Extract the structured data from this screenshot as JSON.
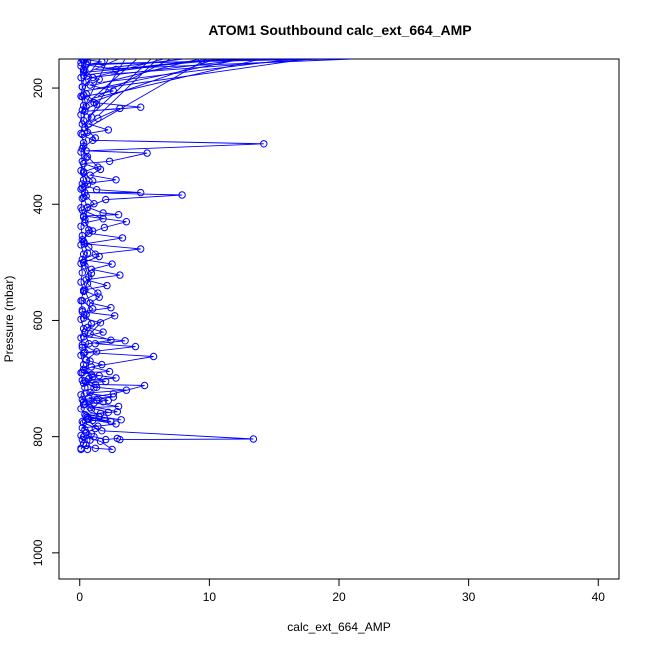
{
  "chart_data": {
    "type": "line",
    "title": "ATOM1 Southbound calc_ext_664_AMP",
    "xlabel": "calc_ext_664_AMP",
    "ylabel": "Pressure (mbar)",
    "xlim": [
      -1.6,
      41.6
    ],
    "ylim": [
      1045,
      150
    ],
    "y_reversed": true,
    "x_ticks": [
      0,
      10,
      20,
      30,
      40
    ],
    "y_ticks": [
      200,
      400,
      600,
      800,
      1000
    ],
    "x_tick_labels": [
      "0",
      "10",
      "20",
      "30",
      "40"
    ],
    "y_tick_labels": [
      "200",
      "400",
      "600",
      "800",
      "1000"
    ],
    "grid": false,
    "series_color": "#0000ff",
    "marker": "open-circle",
    "series": [
      {
        "points": [
          [
            0.1,
            820
          ],
          [
            0.5,
            815
          ],
          [
            1.2,
            820
          ],
          [
            2.5,
            822
          ],
          [
            1.6,
            808
          ],
          [
            0.3,
            800
          ],
          [
            0.9,
            795
          ],
          [
            0.2,
            785
          ],
          [
            1.4,
            782
          ],
          [
            2.8,
            778
          ],
          [
            0.6,
            770
          ],
          [
            1.9,
            768
          ],
          [
            3.2,
            771
          ],
          [
            0.4,
            762
          ],
          [
            2.2,
            758
          ],
          [
            0.8,
            750
          ],
          [
            3.0,
            748
          ],
          [
            1.1,
            742
          ],
          [
            0.2,
            736
          ],
          [
            2.6,
            732
          ],
          [
            0.5,
            725
          ],
          [
            3.6,
            720
          ],
          [
            1.3,
            715
          ],
          [
            0.3,
            708
          ],
          [
            2.0,
            705
          ],
          [
            0.7,
            700
          ],
          [
            1.5,
            695
          ],
          [
            0.2,
            690
          ],
          [
            2.3,
            688
          ],
          [
            0.9,
            680
          ],
          [
            5.7,
            662
          ],
          [
            0.4,
            655
          ],
          [
            4.3,
            645
          ],
          [
            1.2,
            640
          ],
          [
            3.5,
            635
          ],
          [
            0.3,
            628
          ],
          [
            1.8,
            620
          ],
          [
            0.6,
            612
          ],
          [
            2.7,
            592
          ],
          [
            0.2,
            585
          ],
          [
            2.4,
            578
          ],
          [
            0.8,
            570
          ],
          [
            1.5,
            560
          ],
          [
            0.3,
            548
          ],
          [
            2.1,
            540
          ],
          [
            0.5,
            530
          ],
          [
            3.1,
            522
          ],
          [
            0.9,
            512
          ],
          [
            2.5,
            503
          ],
          [
            0.2,
            495
          ],
          [
            1.2,
            486
          ],
          [
            4.7,
            477
          ],
          [
            0.4,
            468
          ],
          [
            3.3,
            458
          ],
          [
            0.7,
            450
          ],
          [
            1.9,
            440
          ],
          [
            3.6,
            430
          ],
          [
            0.3,
            420
          ],
          [
            3.0,
            418
          ],
          [
            1.8,
            415
          ],
          [
            0.6,
            405
          ],
          [
            2.0,
            392
          ],
          [
            7.9,
            384
          ],
          [
            0.4,
            380
          ],
          [
            4.7,
            380
          ],
          [
            1.3,
            375
          ],
          [
            0.2,
            365
          ],
          [
            2.8,
            358
          ],
          [
            0.8,
            350
          ],
          [
            1.6,
            340
          ],
          [
            0.3,
            330
          ],
          [
            2.3,
            326
          ],
          [
            5.2,
            312
          ],
          [
            0.5,
            308
          ],
          [
            14.2,
            296
          ],
          [
            1.0,
            290
          ],
          [
            0.2,
            280
          ],
          [
            2.2,
            272
          ],
          [
            0.7,
            262
          ],
          [
            1.4,
            252
          ],
          [
            3.1,
            235
          ],
          [
            0.4,
            240
          ],
          [
            4.7,
            233
          ],
          [
            1.1,
            225
          ],
          [
            0.2,
            215
          ],
          [
            2.6,
            205
          ],
          [
            0.8,
            195
          ],
          [
            1.5,
            185
          ],
          [
            0.3,
            178
          ],
          [
            9.4,
            152
          ],
          [
            2.8,
            168
          ],
          [
            0.5,
            160
          ],
          [
            1.7,
            155
          ],
          [
            0.2,
            150
          ]
        ]
      },
      {
        "points": [
          [
            0.2,
            805
          ],
          [
            1.1,
            800
          ],
          [
            2.0,
            805
          ],
          [
            2.9,
            803
          ],
          [
            3.1,
            805
          ],
          [
            13.4,
            804
          ],
          [
            1.7,
            790
          ],
          [
            0.3,
            776
          ],
          [
            1.0,
            772
          ],
          [
            2.4,
            774
          ],
          [
            0.6,
            766
          ],
          [
            1.6,
            760
          ],
          [
            2.9,
            757
          ],
          [
            0.3,
            745
          ],
          [
            1.8,
            740
          ],
          [
            0.7,
            733
          ],
          [
            2.6,
            726
          ],
          [
            5.0,
            712
          ],
          [
            1.2,
            710
          ],
          [
            0.4,
            704
          ],
          [
            2.8,
            699
          ],
          [
            0.9,
            693
          ],
          [
            0.3,
            684
          ],
          [
            1.7,
            676
          ],
          [
            0.5,
            668
          ],
          [
            1.3,
            654
          ],
          [
            0.2,
            642
          ],
          [
            2.4,
            634
          ],
          [
            0.8,
            623
          ],
          [
            1.6,
            604
          ],
          [
            0.3,
            596
          ],
          [
            1.0,
            580
          ],
          [
            0.2,
            566
          ],
          [
            1.4,
            553
          ],
          [
            0.6,
            537
          ],
          [
            0.9,
            519
          ],
          [
            0.3,
            500
          ],
          [
            1.5,
            490
          ],
          [
            0.7,
            474
          ],
          [
            0.2,
            461
          ],
          [
            1.0,
            446
          ],
          [
            0.4,
            432
          ],
          [
            1.8,
            425
          ],
          [
            0.2,
            410
          ],
          [
            1.1,
            399
          ],
          [
            0.5,
            386
          ],
          [
            0.2,
            372
          ],
          [
            1.0,
            360
          ],
          [
            0.3,
            344
          ],
          [
            1.4,
            336
          ],
          [
            0.6,
            318
          ],
          [
            0.2,
            304
          ],
          [
            1.2,
            286
          ],
          [
            0.4,
            268
          ],
          [
            0.9,
            250
          ],
          [
            0.2,
            238
          ],
          [
            1.3,
            228
          ],
          [
            0.5,
            210
          ],
          [
            0.2,
            198
          ],
          [
            1.0,
            182
          ],
          [
            0.4,
            170
          ],
          [
            0.1,
            162
          ],
          [
            0.6,
            155
          ],
          [
            0.2,
            150
          ]
        ]
      },
      {
        "points": [
          [
            0.1,
            822
          ],
          [
            0.3,
            812
          ],
          [
            0.1,
            798
          ],
          [
            0.4,
            788
          ],
          [
            0.2,
            774
          ],
          [
            0.5,
            764
          ],
          [
            0.1,
            752
          ],
          [
            0.3,
            740
          ],
          [
            0.1,
            728
          ],
          [
            0.4,
            716
          ],
          [
            0.2,
            703
          ],
          [
            0.1,
            690
          ],
          [
            0.3,
            676
          ],
          [
            0.1,
            660
          ],
          [
            0.2,
            646
          ],
          [
            0.1,
            630
          ],
          [
            0.3,
            614
          ],
          [
            0.1,
            598
          ],
          [
            0.2,
            582
          ],
          [
            0.1,
            566
          ],
          [
            0.3,
            550
          ],
          [
            0.1,
            534
          ],
          [
            0.2,
            518
          ],
          [
            0.1,
            502
          ],
          [
            0.3,
            486
          ],
          [
            0.1,
            470
          ],
          [
            0.2,
            454
          ],
          [
            0.1,
            438
          ],
          [
            0.3,
            422
          ],
          [
            0.1,
            406
          ],
          [
            0.2,
            390
          ],
          [
            0.1,
            374
          ],
          [
            0.3,
            358
          ],
          [
            0.1,
            342
          ],
          [
            0.2,
            326
          ],
          [
            0.1,
            310
          ],
          [
            0.3,
            294
          ],
          [
            0.1,
            278
          ],
          [
            0.2,
            262
          ],
          [
            0.1,
            246
          ],
          [
            0.3,
            230
          ],
          [
            0.1,
            214
          ],
          [
            0.2,
            198
          ],
          [
            0.1,
            182
          ],
          [
            0.3,
            168
          ],
          [
            0.1,
            156
          ],
          [
            0.2,
            150
          ]
        ]
      },
      {
        "points": [
          [
            0.6,
            822
          ],
          [
            0.8,
            806
          ],
          [
            0.5,
            793
          ],
          [
            1.2,
            786
          ],
          [
            0.7,
            770
          ],
          [
            1.5,
            766
          ],
          [
            0.9,
            753
          ],
          [
            0.4,
            744
          ],
          [
            1.3,
            737
          ],
          [
            2.2,
            738
          ],
          [
            0.8,
            724
          ],
          [
            1.1,
            716
          ],
          [
            0.5,
            706
          ],
          [
            1.0,
            697
          ],
          [
            0.4,
            686
          ],
          [
            0.8,
            670
          ],
          [
            0.3,
            656
          ],
          [
            0.7,
            640
          ],
          [
            0.4,
            620
          ],
          [
            0.9,
            606
          ],
          [
            0.5,
            590
          ],
          [
            0.8,
            570
          ],
          [
            0.4,
            548
          ],
          [
            0.7,
            525
          ],
          [
            0.4,
            506
          ],
          [
            0.6,
            484
          ],
          [
            0.3,
            464
          ],
          [
            0.7,
            444
          ],
          [
            0.4,
            426
          ],
          [
            0.6,
            406
          ],
          [
            0.3,
            388
          ],
          [
            0.6,
            366
          ],
          [
            0.3,
            346
          ],
          [
            0.5,
            320
          ],
          [
            0.3,
            300
          ],
          [
            0.6,
            276
          ],
          [
            0.3,
            256
          ],
          [
            0.5,
            232
          ],
          [
            0.3,
            212
          ],
          [
            0.5,
            190
          ],
          [
            0.3,
            172
          ],
          [
            0.5,
            158
          ],
          [
            0.3,
            150
          ]
        ]
      }
    ],
    "leaving_lines": [
      [
        0.4,
        230,
        4.4,
        150
      ],
      [
        0.9,
        196,
        9.2,
        150
      ],
      [
        1.6,
        180,
        13.0,
        150
      ],
      [
        0.3,
        205,
        17.5,
        150
      ],
      [
        1.2,
        168,
        21.0,
        150
      ],
      [
        0.6,
        184,
        6.5,
        150
      ],
      [
        0.8,
        172,
        11.5,
        150
      ],
      [
        2.0,
        166,
        8.0,
        150
      ],
      [
        0.5,
        160,
        15.0,
        150
      ],
      [
        1.0,
        158,
        19.0,
        150
      ],
      [
        0.3,
        176,
        3.0,
        150
      ],
      [
        1.4,
        214,
        7.0,
        150
      ],
      [
        0.7,
        226,
        10.5,
        150
      ],
      [
        0.2,
        240,
        2.2,
        150
      ],
      [
        1.8,
        190,
        16.5,
        150
      ],
      [
        0.6,
        252,
        5.5,
        150
      ],
      [
        1.1,
        202,
        12.5,
        150
      ],
      [
        0.4,
        264,
        3.5,
        150
      ],
      [
        9.4,
        152,
        20.5,
        150
      ],
      [
        0.9,
        218,
        14.0,
        150
      ],
      [
        0.2,
        190,
        1.6,
        150
      ],
      [
        1.5,
        246,
        6.0,
        150
      ],
      [
        0.5,
        270,
        9.8,
        150
      ],
      [
        2.4,
        176,
        18.0,
        150
      ]
    ]
  }
}
